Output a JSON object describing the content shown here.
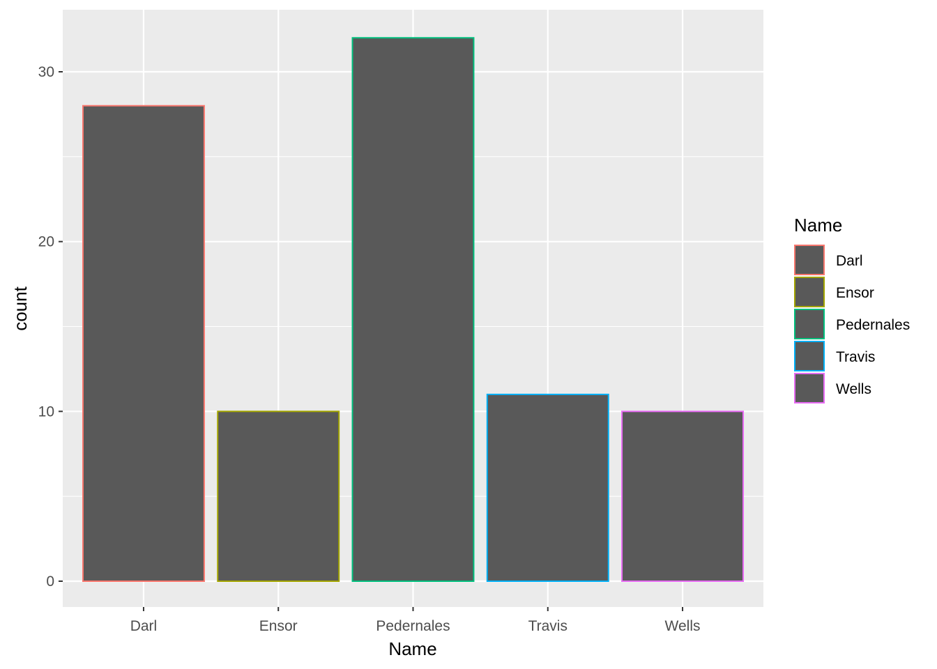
{
  "chart_data": {
    "type": "bar",
    "categories": [
      "Darl",
      "Ensor",
      "Pedernales",
      "Travis",
      "Wells"
    ],
    "values": [
      28,
      10,
      32,
      11,
      10
    ],
    "xlabel": "Name",
    "ylabel": "count",
    "ylim": [
      0,
      33.6
    ],
    "yticks": [
      0,
      10,
      20,
      30
    ],
    "grid": true,
    "bar_fill": "#595959",
    "panel_background": "#ebebeb",
    "outline_colors": [
      "#F8766D",
      "#A3A500",
      "#00BF7D",
      "#00B0F6",
      "#E76BF3"
    ],
    "legend": {
      "title": "Name",
      "position": "right",
      "entries": [
        "Darl",
        "Ensor",
        "Pedernales",
        "Travis",
        "Wells"
      ]
    }
  }
}
